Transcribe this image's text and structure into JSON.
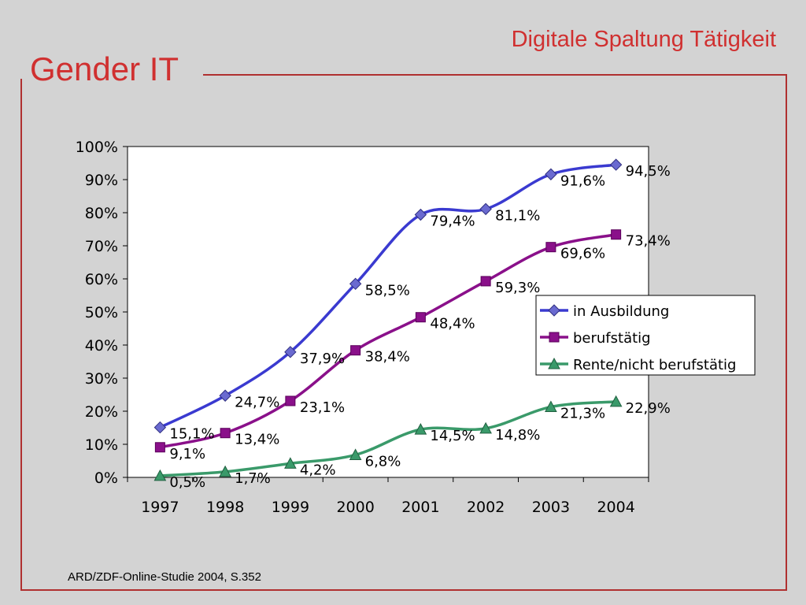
{
  "slide": {
    "title": "Gender IT",
    "subtitle": "Digitale Spaltung Tätigkeit",
    "source": "ARD/ZDF-Online-Studie 2004, S.352"
  },
  "chart_data": {
    "type": "line",
    "categories": [
      "1997",
      "1998",
      "1999",
      "2000",
      "2001",
      "2002",
      "2003",
      "2004"
    ],
    "ylim": [
      0,
      100
    ],
    "yticks": [
      0,
      10,
      20,
      30,
      40,
      50,
      60,
      70,
      80,
      90,
      100
    ],
    "ytick_labels": [
      "0%",
      "10%",
      "20%",
      "30%",
      "40%",
      "50%",
      "60%",
      "70%",
      "80%",
      "90%",
      "100%"
    ],
    "legend_position": "right-middle",
    "grid": false,
    "series": [
      {
        "name": "in Ausbildung",
        "marker": "diamond",
        "color": "#3a3ad0",
        "marker_color": "#6a6ad0",
        "values": [
          15.1,
          24.7,
          37.9,
          58.5,
          79.4,
          81.1,
          91.6,
          94.5
        ],
        "labels": [
          "15,1%",
          "24,7%",
          "37,9%",
          "58,5%",
          "79,4%",
          "81,1%",
          "91,6%",
          "94,5%"
        ]
      },
      {
        "name": "berufstätig",
        "marker": "square",
        "color": "#8a108a",
        "marker_color": "#8a108a",
        "values": [
          9.1,
          13.4,
          23.1,
          38.4,
          48.4,
          59.3,
          69.6,
          73.4
        ],
        "labels": [
          "9,1%",
          "13,4%",
          "23,1%",
          "38,4%",
          "48,4%",
          "59,3%",
          "69,6%",
          "73,4%"
        ]
      },
      {
        "name": "Rente/nicht berufstätig",
        "marker": "triangle",
        "color": "#3a9a6a",
        "marker_color": "#3a9a6a",
        "values": [
          0.5,
          1.7,
          4.2,
          6.8,
          14.5,
          14.8,
          21.3,
          22.9
        ],
        "labels": [
          "0,5%",
          "1,7%",
          "4,2%",
          "6,8%",
          "14,5%",
          "14,8%",
          "21,3%",
          "22,9%"
        ]
      }
    ]
  }
}
